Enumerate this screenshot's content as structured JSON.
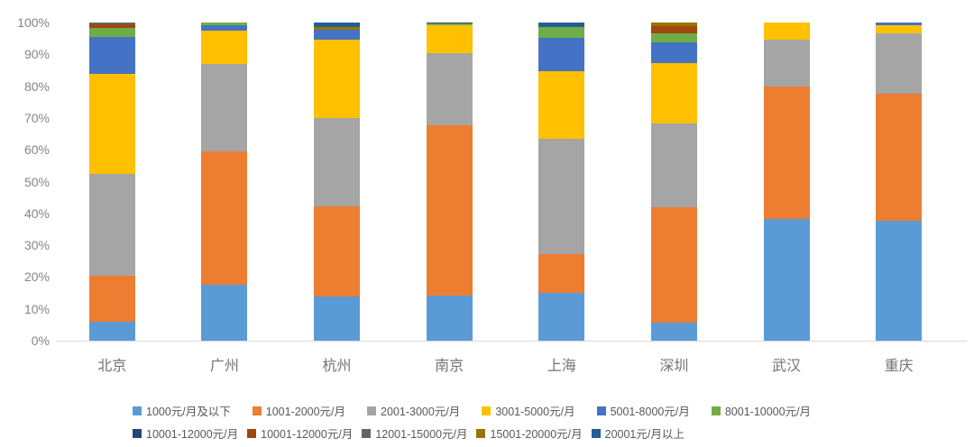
{
  "chart_data": {
    "type": "bar",
    "stacked": true,
    "percent_stacked": true,
    "title": "",
    "xlabel": "",
    "ylabel": "",
    "ylim": [
      0,
      100
    ],
    "grid": false,
    "legend_position": "bottom",
    "y_ticks": [
      "0%",
      "10%",
      "20%",
      "30%",
      "40%",
      "50%",
      "60%",
      "70%",
      "80%",
      "90%",
      "100%"
    ],
    "categories": [
      "北京",
      "广州",
      "杭州",
      "南京",
      "上海",
      "深圳",
      "武汉",
      "重庆"
    ],
    "series": [
      {
        "name": "1000元/月及以下",
        "color": "#5B9BD5",
        "values": [
          6.0,
          17.5,
          14.0,
          14.2,
          15.0,
          5.7,
          38.2,
          37.7
        ]
      },
      {
        "name": "1001-2000元/月",
        "color": "#ED7D31",
        "values": [
          14.5,
          42.0,
          28.3,
          53.5,
          12.3,
          36.3,
          41.7,
          39.9
        ]
      },
      {
        "name": "2001-3000元/月",
        "color": "#A5A5A5",
        "values": [
          32.0,
          27.5,
          27.8,
          22.6,
          36.2,
          26.2,
          14.7,
          18.9
        ]
      },
      {
        "name": "3001-5000元/月",
        "color": "#FFC000",
        "values": [
          31.5,
          10.5,
          24.4,
          9.0,
          21.2,
          19.1,
          5.4,
          2.8
        ]
      },
      {
        "name": "5001-8000元/月",
        "color": "#4472C4",
        "values": [
          11.5,
          1.7,
          3.2,
          0,
          10.4,
          6.4,
          0,
          0.7
        ]
      },
      {
        "name": "8001-10000元/月",
        "color": "#70AD47",
        "values": [
          2.7,
          0.8,
          0,
          0.3,
          3.5,
          3.0,
          0,
          0
        ]
      },
      {
        "name": "10001-12000元/月",
        "color": "#264478",
        "values": [
          0,
          0,
          0,
          0.4,
          0,
          0,
          0,
          0
        ]
      },
      {
        "name": "10001-12000元/月",
        "color": "#9E480E",
        "values": [
          1.3,
          0,
          0,
          0,
          0,
          2.2,
          0,
          0
        ]
      },
      {
        "name": "12001-15000元/月",
        "color": "#636363",
        "values": [
          0.5,
          0,
          0,
          0,
          0,
          0,
          0,
          0
        ]
      },
      {
        "name": "15001-20000元/月",
        "color": "#997300",
        "values": [
          0,
          0,
          0.9,
          0,
          0,
          1.1,
          0,
          0
        ]
      },
      {
        "name": "20001元/月以上",
        "color": "#255E91",
        "values": [
          0,
          0,
          1.4,
          0,
          1.4,
          0,
          0,
          0
        ]
      }
    ],
    "legend_rows": [
      6,
      5
    ]
  },
  "colors": {
    "background": "#FFFFFF",
    "axis_line": "#D9D9D9",
    "tick_label": "#858585",
    "category_label": "#737373",
    "legend_label": "#595959"
  }
}
